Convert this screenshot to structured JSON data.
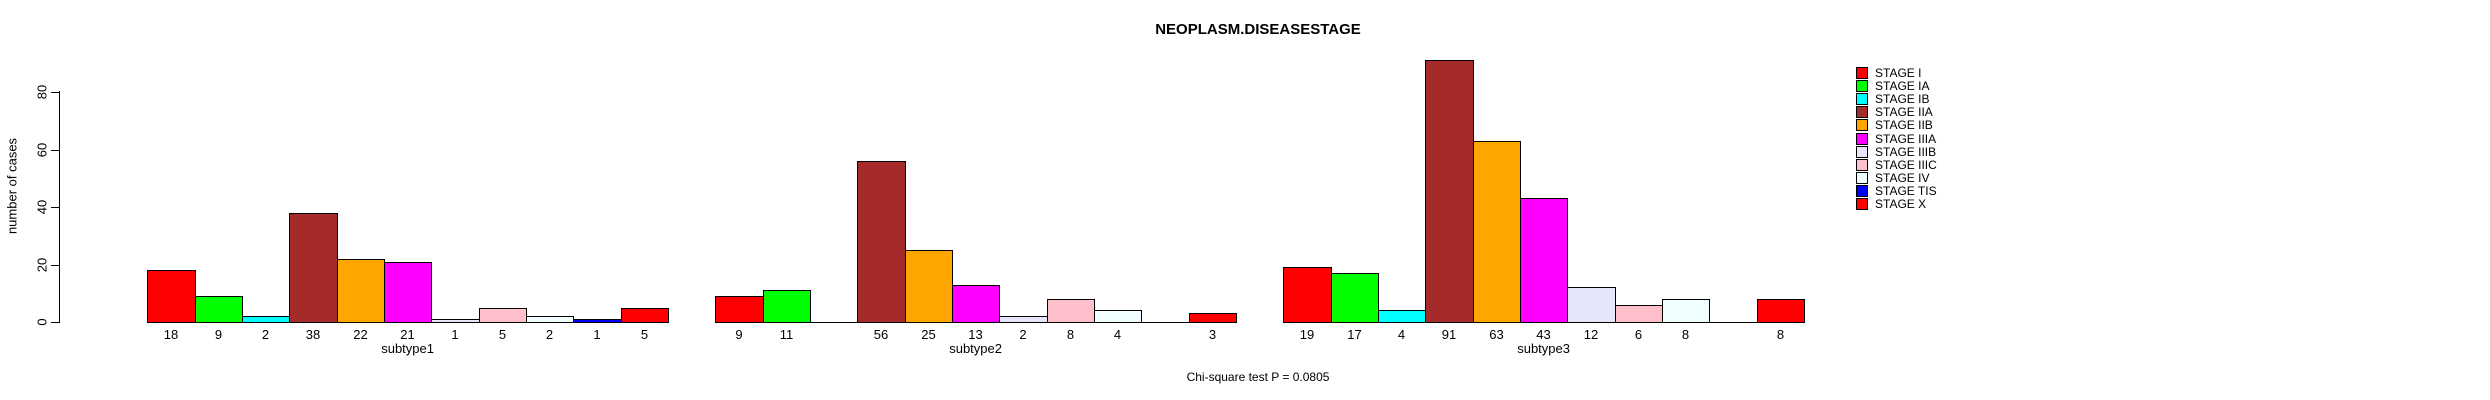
{
  "title": "NEOPLASM.DISEASESTAGE",
  "footer": "Chi-square test P = 0.0805",
  "chart_data": {
    "type": "bar",
    "title": "NEOPLASM.DISEASESTAGE",
    "ylabel": "number of cases",
    "xlabel": "",
    "ylim": [
      0,
      93
    ],
    "yticks": [
      0,
      20,
      40,
      60,
      80
    ],
    "grid": false,
    "legend_position": "right",
    "categories": [
      "subtype1",
      "subtype2",
      "subtype3"
    ],
    "stages": [
      "STAGE I",
      "STAGE IA",
      "STAGE IB",
      "STAGE IIA",
      "STAGE IIB",
      "STAGE IIIA",
      "STAGE IIIB",
      "STAGE IIIC",
      "STAGE IV",
      "STAGE TIS",
      "STAGE X"
    ],
    "colors": [
      "#FF0000",
      "#00FF00",
      "#00FFFF",
      "#A52A2A",
      "#FFA500",
      "#FF00FF",
      "#E6E6FA",
      "#FFC0CB",
      "#F0FFFF",
      "#0000FF",
      "#FF0000"
    ],
    "series": [
      {
        "name": "subtype1",
        "values": [
          18,
          9,
          2,
          38,
          22,
          21,
          1,
          5,
          2,
          1,
          5
        ]
      },
      {
        "name": "subtype2",
        "values": [
          9,
          11,
          0,
          56,
          25,
          13,
          2,
          8,
          4,
          0,
          3
        ]
      },
      {
        "name": "subtype3",
        "values": [
          19,
          17,
          4,
          91,
          63,
          43,
          12,
          6,
          8,
          0,
          8
        ]
      }
    ],
    "footer": "Chi-square test P = 0.0805"
  }
}
